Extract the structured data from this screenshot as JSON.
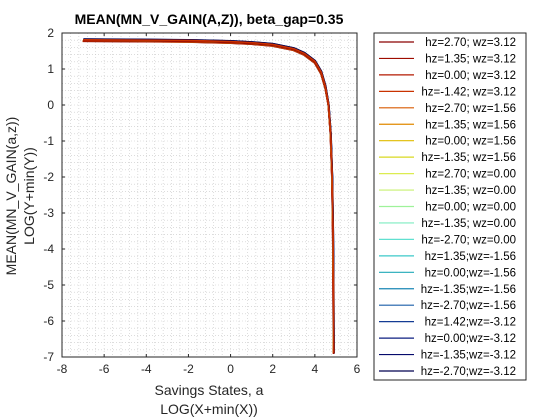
{
  "chart_data": {
    "type": "line",
    "title": "MEAN(MN_V_GAIN(A,Z)), beta_gap=0.35",
    "xlabel": [
      "Savings States, a",
      "LOG(X+min(X))"
    ],
    "ylabel": [
      "MEAN(MN_V_GAIN(a,z))",
      "LOG(Y+min(Y))"
    ],
    "xlim": [
      -8,
      6
    ],
    "ylim": [
      -7,
      2
    ],
    "xticks": [
      "-8",
      "-6",
      "-4",
      "-2",
      "0",
      "2",
      "4",
      "6"
    ],
    "yticks": [
      "-7",
      "-6",
      "-5",
      "-4",
      "-3",
      "-2",
      "-1",
      "0",
      "1",
      "2"
    ],
    "grid": "dotted minor grid",
    "legend_position": "outside right",
    "series": [
      {
        "name": "hz=2.70; wz=3.12",
        "color": "#8b0000"
      },
      {
        "name": "hz=1.35; wz=3.12",
        "color": "#9e0c00"
      },
      {
        "name": "hz=0.00; wz=3.12",
        "color": "#b41a00"
      },
      {
        "name": "hz=-1.42; wz=3.12",
        "color": "#c93200"
      },
      {
        "name": "hz=2.70; wz=1.56",
        "color": "#d85a00"
      },
      {
        "name": "hz=1.35; wz=1.56",
        "color": "#e08a00"
      },
      {
        "name": "hz=0.00; wz=1.56",
        "color": "#e0bc00"
      },
      {
        "name": "hz=-1.35; wz=1.56",
        "color": "#d8d820"
      },
      {
        "name": "hz=2.70; wz=0.00",
        "color": "#dcec50"
      },
      {
        "name": "hz=1.35; wz=0.00",
        "color": "#c8f070"
      },
      {
        "name": "hz=0.00; wz=0.00",
        "color": "#9ef29a"
      },
      {
        "name": "hz=-1.35; wz=0.00",
        "color": "#7eecc0"
      },
      {
        "name": "hz=-2.70; wz=0.00",
        "color": "#60e0d0"
      },
      {
        "name": "hz=1.35;wz=-1.56",
        "color": "#3cc8c8"
      },
      {
        "name": "hz=0.00;wz=-1.56",
        "color": "#20aab8"
      },
      {
        "name": "hz=-1.35;wz=-1.56",
        "color": "#1a86b4"
      },
      {
        "name": "hz=-2.70;wz=-1.56",
        "color": "#1a5ea8"
      },
      {
        "name": "hz=1.42;wz=-3.12",
        "color": "#143c94"
      },
      {
        "name": "hz=0.00;wz=-3.12",
        "color": "#0c1e80"
      },
      {
        "name": "hz=-1.35;wz=-3.12",
        "color": "#060a6c"
      },
      {
        "name": "hz=-2.70;wz=-3.12",
        "color": "#000050"
      }
    ],
    "curve_shape": {
      "x": [
        -7,
        -4,
        -2,
        0,
        1,
        2,
        3,
        3.5,
        4,
        4.3,
        4.5,
        4.65,
        4.75,
        4.82,
        4.86,
        4.88,
        4.89,
        4.9
      ],
      "y": [
        1.8,
        1.79,
        1.78,
        1.75,
        1.72,
        1.67,
        1.55,
        1.42,
        1.2,
        0.9,
        0.5,
        0,
        -0.8,
        -2,
        -3.5,
        -5,
        -6.2,
        -6.9
      ]
    }
  }
}
